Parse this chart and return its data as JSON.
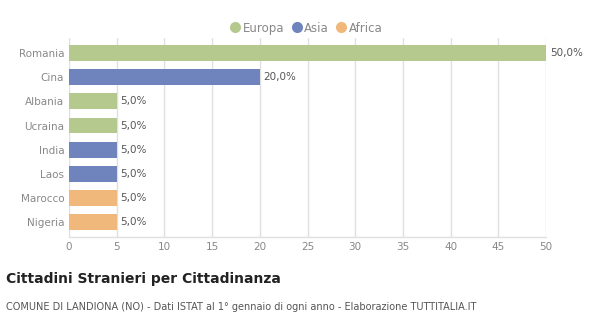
{
  "categories": [
    "Romania",
    "Cina",
    "Albania",
    "Ucraina",
    "India",
    "Laos",
    "Marocco",
    "Nigeria"
  ],
  "values": [
    50.0,
    20.0,
    5.0,
    5.0,
    5.0,
    5.0,
    5.0,
    5.0
  ],
  "colors": [
    "#b5c98e",
    "#6f83bd",
    "#b5c98e",
    "#b5c98e",
    "#6f83bd",
    "#6f83bd",
    "#f0b87a",
    "#f0b87a"
  ],
  "labels": [
    "50,0%",
    "20,0%",
    "5,0%",
    "5,0%",
    "5,0%",
    "5,0%",
    "5,0%",
    "5,0%"
  ],
  "xlim": [
    0,
    50
  ],
  "xticks": [
    0,
    5,
    10,
    15,
    20,
    25,
    30,
    35,
    40,
    45,
    50
  ],
  "legend_entries": [
    {
      "label": "Europa",
      "color": "#b5c98e"
    },
    {
      "label": "Asia",
      "color": "#6f83bd"
    },
    {
      "label": "Africa",
      "color": "#f0b87a"
    }
  ],
  "title": "Cittadini Stranieri per Cittadinanza",
  "subtitle": "COMUNE DI LANDIONA (NO) - Dati ISTAT al 1° gennaio di ogni anno - Elaborazione TUTTITALIA.IT",
  "background_color": "#ffffff",
  "plot_bg_color": "#ffffff",
  "grid_color": "#e0e0e0",
  "bar_height": 0.65,
  "label_fontsize": 7.5,
  "tick_fontsize": 7.5,
  "title_fontsize": 10,
  "subtitle_fontsize": 7,
  "legend_fontsize": 8.5,
  "bar_label_color": "#555555",
  "tick_color": "#888888",
  "title_color": "#222222",
  "subtitle_color": "#555555"
}
